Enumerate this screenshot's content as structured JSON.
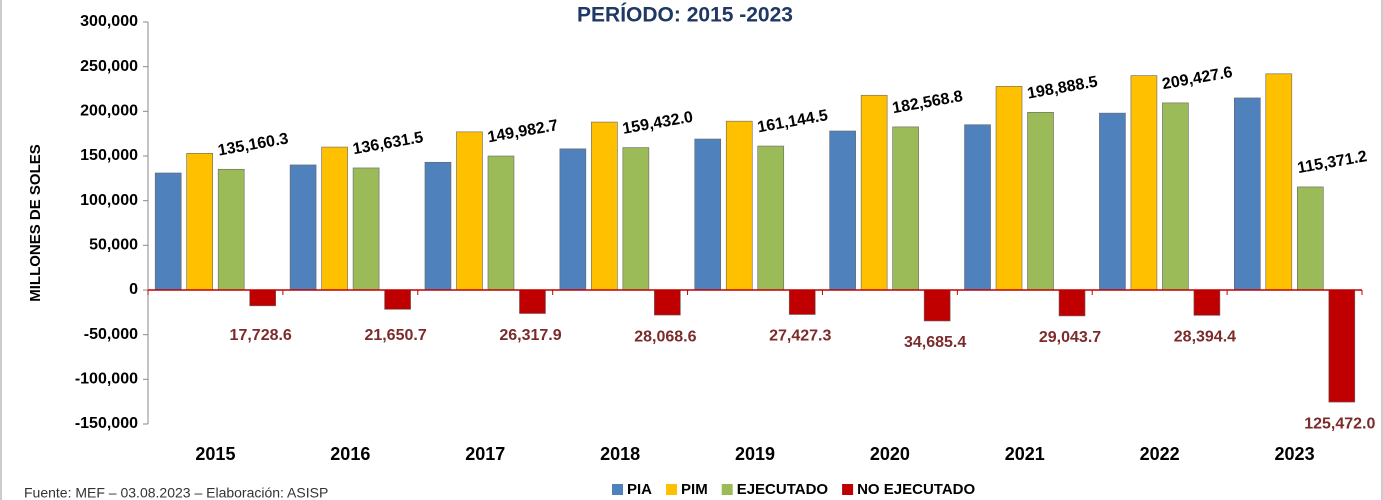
{
  "chart_data": {
    "type": "bar",
    "title": "PERÍODO: 2015 -2023",
    "y_label": "MILLONES DE SOLES",
    "source": "Fuente: MEF – 03.08.2023 – Elaboración: ASISP",
    "categories": [
      "2015",
      "2016",
      "2017",
      "2018",
      "2019",
      "2020",
      "2021",
      "2022",
      "2023"
    ],
    "series": [
      {
        "name": "PIA",
        "color": "#4f81bd",
        "values": [
          131000,
          140000,
          143000,
          158000,
          169000,
          178000,
          185000,
          198000,
          215000
        ]
      },
      {
        "name": "PIM",
        "color": "#ffc000",
        "values": [
          153000,
          160000,
          177000,
          188000,
          189000,
          218000,
          228000,
          240000,
          242000
        ]
      },
      {
        "name": "EJECUTADO",
        "color": "#9bbb59",
        "values": [
          135160.3,
          136631.5,
          149982.7,
          159432.0,
          161144.5,
          182568.8,
          198888.5,
          209427.6,
          115371.2
        ],
        "value_labels": [
          "135,160.3",
          "136,631.5",
          "149,982.7",
          "159,432.0",
          "161,144.5",
          "182,568.8",
          "198,888.5",
          "209,427.6",
          "115,371.2"
        ]
      },
      {
        "name": "NO EJECUTADO",
        "color": "#c00000",
        "values": [
          -17728.6,
          -21650.7,
          -26317.9,
          -28068.6,
          -27427.3,
          -34685.4,
          -29043.7,
          -28394.4,
          -125472.0
        ],
        "value_labels": [
          "17,728.6",
          "21,650.7",
          "26,317.9",
          "28,068.6",
          "27,427.3",
          "34,685.4",
          "29,043.7",
          "28,394.4",
          "125,472.0"
        ]
      }
    ],
    "ylim": [
      -150000,
      300000
    ],
    "yticks": [
      {
        "value": -150000,
        "label": "-150,000"
      },
      {
        "value": -100000,
        "label": "-100,000"
      },
      {
        "value": -50000,
        "label": "-50,000"
      },
      0,
      {
        "value": 50000,
        "label": "50,000"
      },
      {
        "value": 100000,
        "label": "100,000"
      },
      {
        "value": 150000,
        "label": "150,000"
      },
      {
        "value": 200000,
        "label": "200,000"
      },
      {
        "value": 250000,
        "label": "250,000"
      },
      {
        "value": 300000,
        "label": "300,000"
      }
    ],
    "legend": "bottom"
  }
}
